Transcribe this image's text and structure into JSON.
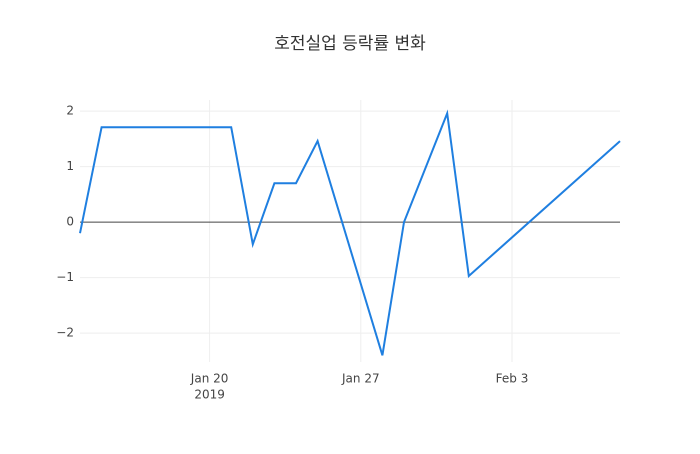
{
  "chart_data": {
    "type": "line",
    "title": "호전실업 등락률 변화",
    "x": [
      "2019-01-14",
      "2019-01-15",
      "2019-01-16",
      "2019-01-17",
      "2019-01-18",
      "2019-01-21",
      "2019-01-22",
      "2019-01-23",
      "2019-01-24",
      "2019-01-25",
      "2019-01-28",
      "2019-01-29",
      "2019-01-31",
      "2019-02-01",
      "2019-02-08"
    ],
    "series": [
      {
        "color": "#1f7fe0",
        "values": [
          -0.2,
          1.71,
          1.71,
          1.71,
          1.71,
          1.71,
          -0.4,
          0.7,
          0.7,
          1.46,
          -2.4,
          0,
          1.96,
          -0.97,
          1.46
        ]
      }
    ],
    "xlim": [
      "2019-01-14",
      "2019-02-08"
    ],
    "xticks": [
      {
        "value": "2019-01-20",
        "label": "Jan 20"
      },
      {
        "value": "2019-01-27",
        "label": "Jan 27"
      },
      {
        "value": "2019-02-03",
        "label": "Feb 3"
      }
    ],
    "xtick_year": "2019",
    "ylim": [
      -2.52,
      2.2
    ],
    "yticks": [
      {
        "value": -2,
        "label": "−2"
      },
      {
        "value": -1,
        "label": "−1"
      },
      0,
      1,
      2
    ],
    "grid": true,
    "zeroline": true
  }
}
